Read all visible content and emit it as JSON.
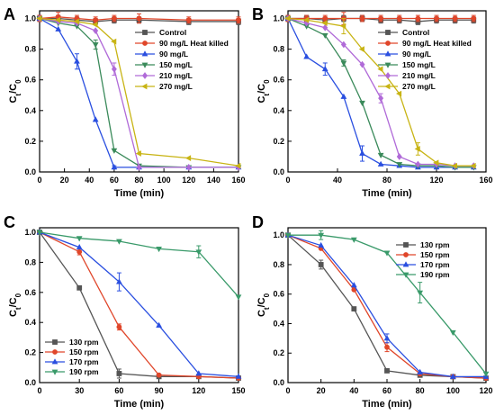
{
  "figure": {
    "background": "#ffffff"
  },
  "chart_data": [
    {
      "panel": "A",
      "type": "line",
      "xlabel": "Time (min)",
      "ylabel": "Ct/C0",
      "xlim": [
        0,
        160
      ],
      "ylim": [
        0,
        1.05
      ],
      "xticks": [
        0,
        20,
        40,
        60,
        80,
        100,
        120,
        140,
        160
      ],
      "yticks": [
        0.0,
        0.2,
        0.4,
        0.6,
        0.8,
        1.0
      ],
      "legend_position": "top-right",
      "grid": false,
      "series": [
        {
          "name": "Control",
          "color": "#555555",
          "marker": "square",
          "x": [
            0,
            15,
            30,
            45,
            60,
            80,
            120,
            160
          ],
          "y": [
            1.0,
            1.0,
            0.99,
            0.98,
            0.99,
            0.99,
            0.98,
            0.98
          ],
          "err": [
            0.02,
            0.02,
            0.02,
            0.02,
            0.02,
            0.02,
            0.02,
            0.02
          ]
        },
        {
          "name": "90 mg/L Heat killed",
          "color": "#e0462a",
          "marker": "circle",
          "x": [
            0,
            15,
            30,
            45,
            60,
            80,
            120,
            160
          ],
          "y": [
            1.0,
            1.01,
            1.0,
            0.99,
            1.0,
            1.0,
            0.99,
            0.99
          ],
          "err": [
            0.02,
            0.03,
            0.02,
            0.02,
            0.02,
            0.03,
            0.02,
            0.02
          ]
        },
        {
          "name": "90 mg/L",
          "color": "#2a4fe0",
          "marker": "triangle-up",
          "x": [
            0,
            15,
            30,
            45,
            60,
            80,
            120,
            160
          ],
          "y": [
            1.0,
            0.93,
            0.72,
            0.34,
            0.03,
            0.03,
            0.03,
            0.03
          ],
          "err": [
            0.0,
            0.0,
            0.05,
            0.0,
            0.01,
            0.0,
            0.0,
            0.0
          ]
        },
        {
          "name": "150 mg/L",
          "color": "#3a8a5a",
          "marker": "triangle-down",
          "x": [
            0,
            15,
            30,
            45,
            60,
            80,
            120,
            160
          ],
          "y": [
            1.0,
            0.97,
            0.95,
            0.83,
            0.14,
            0.04,
            0.03,
            0.03
          ],
          "err": [
            0.0,
            0.0,
            0.0,
            0.03,
            0.0,
            0.0,
            0.0,
            0.0
          ]
        },
        {
          "name": "210 mg/L",
          "color": "#b06ad8",
          "marker": "diamond",
          "x": [
            0,
            15,
            30,
            45,
            60,
            80,
            120,
            160
          ],
          "y": [
            1.0,
            0.98,
            0.97,
            0.92,
            0.67,
            0.03,
            0.03,
            0.03
          ],
          "err": [
            0.0,
            0.0,
            0.0,
            0.0,
            0.04,
            0.0,
            0.0,
            0.0
          ]
        },
        {
          "name": "270 mg/L",
          "color": "#c8b414",
          "marker": "triangle-left",
          "x": [
            0,
            15,
            30,
            45,
            60,
            80,
            120,
            160
          ],
          "y": [
            1.0,
            0.99,
            0.98,
            0.96,
            0.85,
            0.12,
            0.09,
            0.04
          ],
          "err": [
            0.0,
            0.0,
            0.0,
            0.0,
            0.0,
            0.0,
            0.0,
            0.0
          ]
        }
      ]
    },
    {
      "panel": "B",
      "type": "line",
      "xlabel": "Time (min)",
      "ylabel": "Ct/C0",
      "xlim": [
        0,
        160
      ],
      "ylim": [
        0,
        1.05
      ],
      "xticks": [
        0,
        40,
        80,
        120,
        160
      ],
      "yticks": [
        0.0,
        0.2,
        0.4,
        0.6,
        0.8,
        1.0
      ],
      "legend_position": "top-right",
      "grid": false,
      "series": [
        {
          "name": "Control",
          "color": "#555555",
          "marker": "square",
          "x": [
            0,
            15,
            30,
            45,
            60,
            75,
            90,
            105,
            120,
            135,
            150
          ],
          "y": [
            1.0,
            1.0,
            0.99,
            1.0,
            1.0,
            0.99,
            0.99,
            0.98,
            0.99,
            0.99,
            0.99
          ],
          "err": [
            0.02,
            0.02,
            0.02,
            0.02,
            0.02,
            0.02,
            0.02,
            0.02,
            0.02,
            0.02,
            0.02
          ]
        },
        {
          "name": "90 mg/L Heat killed",
          "color": "#e0462a",
          "marker": "circle",
          "x": [
            0,
            15,
            30,
            45,
            60,
            75,
            90,
            105,
            120,
            135,
            150
          ],
          "y": [
            1.0,
            1.0,
            1.0,
            1.0,
            1.0,
            1.0,
            1.0,
            1.0,
            1.0,
            1.0,
            1.0
          ],
          "err": [
            0.02,
            0.02,
            0.02,
            0.04,
            0.02,
            0.02,
            0.02,
            0.02,
            0.02,
            0.02,
            0.02
          ]
        },
        {
          "name": "90 mg/L",
          "color": "#2a4fe0",
          "marker": "triangle-up",
          "x": [
            0,
            15,
            30,
            45,
            60,
            75,
            90,
            105,
            120,
            135,
            150
          ],
          "y": [
            1.0,
            0.75,
            0.67,
            0.49,
            0.12,
            0.05,
            0.04,
            0.03,
            0.03,
            0.03,
            0.03
          ],
          "err": [
            0.0,
            0.0,
            0.04,
            0.0,
            0.05,
            0.0,
            0.0,
            0.0,
            0.0,
            0.0,
            0.0
          ]
        },
        {
          "name": "150 mg/L",
          "color": "#3a8a5a",
          "marker": "triangle-down",
          "x": [
            0,
            15,
            30,
            45,
            60,
            75,
            90,
            105,
            120,
            135,
            150
          ],
          "y": [
            1.0,
            0.95,
            0.89,
            0.71,
            0.45,
            0.11,
            0.05,
            0.04,
            0.04,
            0.03,
            0.03
          ],
          "err": [
            0.0,
            0.0,
            0.0,
            0.02,
            0.0,
            0.0,
            0.0,
            0.0,
            0.0,
            0.0,
            0.0
          ]
        },
        {
          "name": "210 mg/L",
          "color": "#b06ad8",
          "marker": "diamond",
          "x": [
            0,
            15,
            30,
            45,
            60,
            75,
            90,
            105,
            120,
            135,
            150
          ],
          "y": [
            1.0,
            0.97,
            0.94,
            0.83,
            0.7,
            0.48,
            0.1,
            0.05,
            0.05,
            0.04,
            0.04
          ],
          "err": [
            0.0,
            0.0,
            0.0,
            0.0,
            0.0,
            0.03,
            0.0,
            0.0,
            0.0,
            0.0,
            0.0
          ]
        },
        {
          "name": "270 mg/L",
          "color": "#c8b414",
          "marker": "triangle-left",
          "x": [
            0,
            15,
            30,
            45,
            60,
            75,
            90,
            105,
            120,
            135,
            150
          ],
          "y": [
            1.0,
            0.99,
            0.97,
            0.95,
            0.8,
            0.67,
            0.51,
            0.15,
            0.06,
            0.04,
            0.04
          ],
          "err": [
            0.0,
            0.0,
            0.0,
            0.05,
            0.0,
            0.0,
            0.0,
            0.04,
            0.0,
            0.0,
            0.0
          ]
        }
      ]
    },
    {
      "panel": "C",
      "type": "line",
      "xlabel": "Time (min)",
      "ylabel": "Ct/C0",
      "xlim": [
        0,
        150
      ],
      "ylim": [
        0,
        1.03
      ],
      "xticks": [
        0,
        30,
        60,
        90,
        120,
        150
      ],
      "yticks": [
        0.0,
        0.2,
        0.4,
        0.6,
        0.8,
        1.0
      ],
      "legend_position": "bottom-left",
      "grid": false,
      "series": [
        {
          "name": "130 rpm",
          "color": "#555555",
          "marker": "square",
          "x": [
            0,
            30,
            60,
            90,
            120,
            150
          ],
          "y": [
            1.0,
            0.63,
            0.06,
            0.04,
            0.04,
            0.03
          ],
          "err": [
            0.0,
            0.0,
            0.03,
            0.0,
            0.0,
            0.0
          ]
        },
        {
          "name": "150 rpm",
          "color": "#e0462a",
          "marker": "circle",
          "x": [
            0,
            30,
            60,
            90,
            120,
            150
          ],
          "y": [
            1.0,
            0.87,
            0.37,
            0.05,
            0.04,
            0.03
          ],
          "err": [
            0.0,
            0.02,
            0.02,
            0.0,
            0.0,
            0.0
          ]
        },
        {
          "name": "170 rpm",
          "color": "#2a4fe0",
          "marker": "triangle-up",
          "x": [
            0,
            30,
            60,
            90,
            120,
            150
          ],
          "y": [
            1.0,
            0.9,
            0.67,
            0.38,
            0.06,
            0.04
          ],
          "err": [
            0.0,
            0.0,
            0.06,
            0.0,
            0.0,
            0.0
          ]
        },
        {
          "name": "190 rpm",
          "color": "#3a9a6a",
          "marker": "triangle-down",
          "x": [
            0,
            30,
            60,
            90,
            120,
            150
          ],
          "y": [
            1.0,
            0.96,
            0.94,
            0.89,
            0.87,
            0.57
          ],
          "err": [
            0.0,
            0.0,
            0.0,
            0.0,
            0.04,
            0.0
          ]
        }
      ]
    },
    {
      "panel": "D",
      "type": "line",
      "xlabel": "Time (min)",
      "ylabel": "Ct/C0",
      "xlim": [
        0,
        120
      ],
      "ylim": [
        0,
        1.05
      ],
      "xticks": [
        0,
        20,
        40,
        60,
        80,
        100,
        120
      ],
      "yticks": [
        0.0,
        0.2,
        0.4,
        0.6,
        0.8,
        1.0
      ],
      "legend_position": "top-right",
      "grid": false,
      "series": [
        {
          "name": "130 rpm",
          "color": "#555555",
          "marker": "square",
          "x": [
            0,
            20,
            40,
            60,
            80,
            100,
            120
          ],
          "y": [
            1.0,
            0.8,
            0.5,
            0.08,
            0.05,
            0.04,
            0.03
          ],
          "err": [
            0.0,
            0.03,
            0.0,
            0.0,
            0.0,
            0.0,
            0.0
          ]
        },
        {
          "name": "150 rpm",
          "color": "#e0462a",
          "marker": "circle",
          "x": [
            0,
            20,
            40,
            60,
            80,
            100,
            120
          ],
          "y": [
            1.0,
            0.91,
            0.63,
            0.24,
            0.06,
            0.04,
            0.03
          ],
          "err": [
            0.0,
            0.0,
            0.0,
            0.03,
            0.0,
            0.0,
            0.0
          ]
        },
        {
          "name": "170 rpm",
          "color": "#2a4fe0",
          "marker": "triangle-up",
          "x": [
            0,
            20,
            40,
            60,
            80,
            100,
            120
          ],
          "y": [
            1.0,
            0.93,
            0.66,
            0.3,
            0.07,
            0.04,
            0.04
          ],
          "err": [
            0.0,
            0.0,
            0.0,
            0.03,
            0.0,
            0.0,
            0.0
          ]
        },
        {
          "name": "190 rpm",
          "color": "#3a9a6a",
          "marker": "triangle-down",
          "x": [
            0,
            20,
            40,
            60,
            80,
            100,
            120
          ],
          "y": [
            1.0,
            1.0,
            0.97,
            0.88,
            0.61,
            0.34,
            0.06
          ],
          "err": [
            0.0,
            0.03,
            0.0,
            0.0,
            0.07,
            0.0,
            0.0
          ]
        }
      ]
    }
  ]
}
